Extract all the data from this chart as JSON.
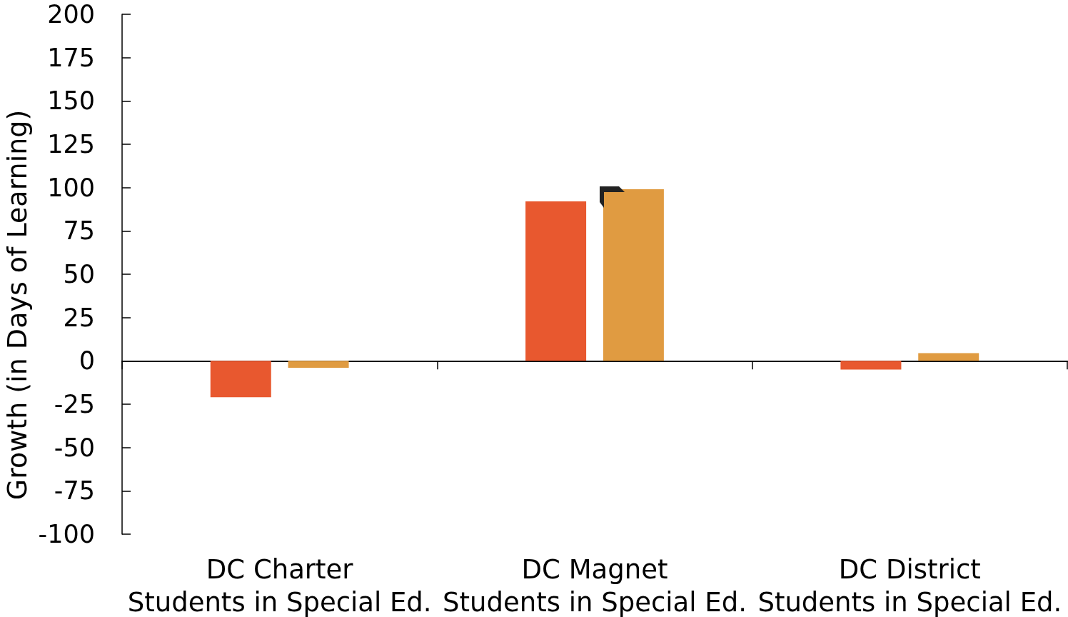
{
  "chart_data": {
    "type": "bar",
    "ylabel": "Growth (in Days of Learning)",
    "categories": [
      "DC Charter\nStudents in Special Ed.",
      "DC Magnet\nStudents in Special Ed.",
      "DC District\nStudents in Special Ed."
    ],
    "series": [
      {
        "color": "#e8582f",
        "values": [
          -21,
          92,
          -5
        ]
      },
      {
        "color": "#e09b41",
        "values": [
          -4,
          99,
          4.5
        ]
      }
    ],
    "ylim": [
      -100,
      200
    ],
    "yticks": [
      -100,
      -75,
      -50,
      -25,
      0,
      25,
      50,
      75,
      100,
      125,
      150,
      175,
      200
    ]
  }
}
